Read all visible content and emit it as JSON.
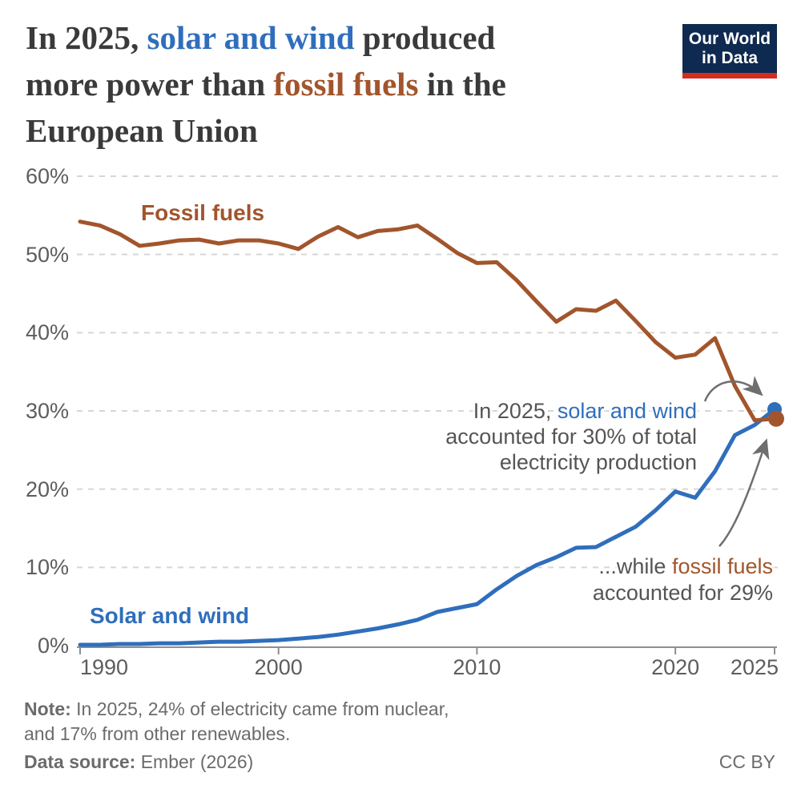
{
  "header": {
    "title_lines": [
      [
        {
          "text": "In 2025, ",
          "color": "default"
        },
        {
          "text": "solar and wind",
          "color": "blue"
        },
        {
          "text": " produced",
          "color": "default"
        }
      ],
      [
        {
          "text": "more power than ",
          "color": "default"
        },
        {
          "text": "fossil fuels",
          "color": "brown"
        },
        {
          "text": " in the",
          "color": "default"
        }
      ],
      [
        {
          "text": "European Union",
          "color": "default"
        }
      ]
    ],
    "logo": {
      "line1": "Our World",
      "line2": "in Data"
    }
  },
  "chart_data": {
    "type": "line",
    "title": "In 2025, solar and wind produced more power than fossil fuels in the European Union",
    "unit": "%",
    "xlim": [
      1990,
      2025
    ],
    "ylim": [
      0,
      60
    ],
    "grid": "dashed horizontal",
    "legend": "inline series labels",
    "x": [
      1990,
      1991,
      1992,
      1993,
      1994,
      1995,
      1996,
      1997,
      1998,
      1999,
      2000,
      2001,
      2002,
      2003,
      2004,
      2005,
      2006,
      2007,
      2008,
      2009,
      2010,
      2011,
      2012,
      2013,
      2014,
      2015,
      2016,
      2017,
      2018,
      2019,
      2020,
      2021,
      2022,
      2023,
      2024,
      2025
    ],
    "series": [
      {
        "id": "solar",
        "name": "Solar and wind",
        "color": "#2f6ebc",
        "values": [
          0.1,
          0.1,
          0.2,
          0.2,
          0.3,
          0.3,
          0.4,
          0.5,
          0.5,
          0.6,
          0.7,
          0.9,
          1.1,
          1.4,
          1.8,
          2.2,
          2.7,
          3.3,
          4.3,
          4.8,
          5.3,
          7.2,
          8.9,
          10.3,
          11.3,
          12.5,
          12.6,
          13.9,
          15.2,
          17.3,
          19.7,
          18.9,
          22.3,
          26.9,
          28.2,
          30.2
        ]
      },
      {
        "id": "fossil",
        "name": "Fossil fuels",
        "color": "#a2552c",
        "values": [
          54.2,
          53.7,
          52.6,
          51.1,
          51.4,
          51.8,
          51.9,
          51.4,
          51.8,
          51.8,
          51.4,
          50.7,
          52.3,
          53.5,
          52.2,
          53.0,
          53.2,
          53.7,
          52.0,
          50.2,
          48.9,
          49.0,
          46.7,
          44.0,
          41.4,
          43.0,
          42.8,
          44.1,
          41.5,
          38.8,
          36.8,
          37.2,
          39.3,
          33.2,
          28.8,
          29.0
        ]
      }
    ],
    "yticks": [
      {
        "value": 0,
        "label": "0%"
      },
      {
        "value": 10,
        "label": "10%"
      },
      {
        "value": 20,
        "label": "20%"
      },
      {
        "value": 30,
        "label": "30%"
      },
      {
        "value": 40,
        "label": "40%"
      },
      {
        "value": 50,
        "label": "50%"
      },
      {
        "value": 60,
        "label": "60%"
      }
    ],
    "xticks": [
      {
        "value": 1990,
        "label": "1990"
      },
      {
        "value": 2000,
        "label": "2000"
      },
      {
        "value": 2010,
        "label": "2010"
      },
      {
        "value": 2020,
        "label": "2020"
      },
      {
        "value": 2025,
        "label": "2025"
      }
    ]
  },
  "series_labels": {
    "fossil": "Fossil fuels",
    "solar": "Solar and wind"
  },
  "annotations": {
    "solar": {
      "line1_prefix": "In 2025, ",
      "line1_highlight": "solar and wind",
      "line2": "accounted for 30% of total",
      "line3": "electricity production"
    },
    "fossil": {
      "line1_prefix": "...while ",
      "line1_highlight": "fossil fuels",
      "line2": "accounted for 29%"
    }
  },
  "footer": {
    "note_label": "Note:",
    "note_line1": " In 2025, 24% of electricity came from nuclear,",
    "note_line2": "and 17% from other renewables.",
    "source_label": "Data source:",
    "source_value": " Ember (2026)",
    "license": "CC BY"
  },
  "colors": {
    "blue": "#2f6ebc",
    "brown": "#a2552c",
    "text_dark": "#3a3a3a",
    "axis_text": "#5d5d5d",
    "annotation_text": "#555555",
    "footer_text": "#6b6b6b",
    "grid": "#d6d6d6",
    "axis": "#8f8f8f",
    "arrow": "#6e6e6e",
    "logo_bg": "#0f2a50",
    "logo_red": "#d62b20"
  }
}
